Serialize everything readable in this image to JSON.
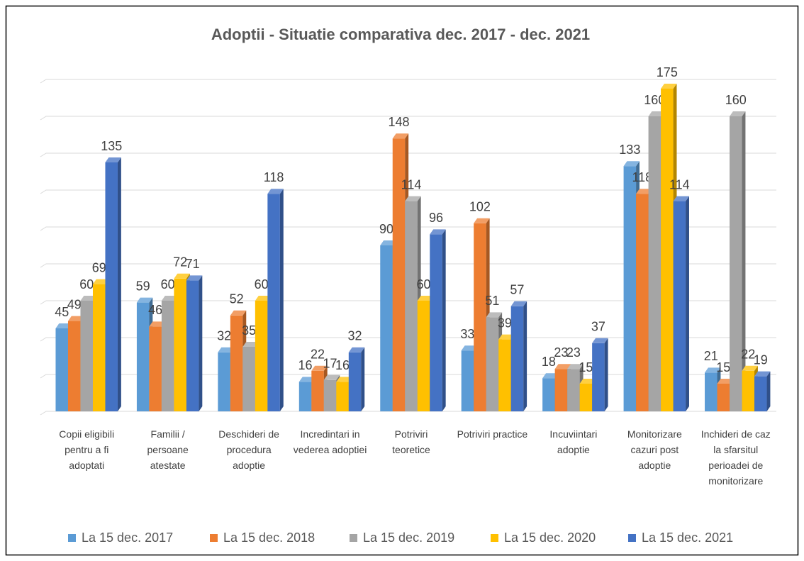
{
  "chart_data": {
    "type": "bar3d",
    "title": "Adoptii - Situatie comparativa dec. 2017 - dec. 2021",
    "categories": [
      "Copii eligibili pentru a fi adoptati",
      "Familii / persoane atestate",
      "Deschideri de procedura adoptie",
      "Incredintari in vederea adoptiei",
      "Potriviri teoretice",
      "Potriviri practice",
      "Incuviintari adoptie",
      "Monitorizare cazuri post adoptie",
      "Inchideri de caz la sfarsitul perioadei de monitorizare"
    ],
    "series": [
      {
        "name": "La 15 dec. 2017",
        "color": "#5b9bd5",
        "values": [
          45,
          59,
          32,
          16,
          90,
          33,
          18,
          133,
          21
        ]
      },
      {
        "name": "La 15 dec. 2018",
        "color": "#ed7d31",
        "values": [
          49,
          46,
          52,
          22,
          148,
          102,
          23,
          118,
          15
        ]
      },
      {
        "name": "La 15 dec. 2019",
        "color": "#a5a5a5",
        "values": [
          60,
          60,
          35,
          17,
          114,
          51,
          23,
          160,
          160
        ]
      },
      {
        "name": "La 15 dec. 2020",
        "color": "#ffc000",
        "values": [
          69,
          72,
          60,
          16,
          60,
          39,
          15,
          175,
          22
        ]
      },
      {
        "name": "La 15 dec. 2021",
        "color": "#4472c4",
        "values": [
          135,
          71,
          118,
          32,
          96,
          57,
          37,
          114,
          19
        ]
      }
    ],
    "ylim": [
      0,
      180
    ],
    "yticks": [
      0,
      20,
      40,
      60,
      80,
      100,
      120,
      140,
      160,
      180
    ],
    "grid": true,
    "legend": "bottom"
  }
}
